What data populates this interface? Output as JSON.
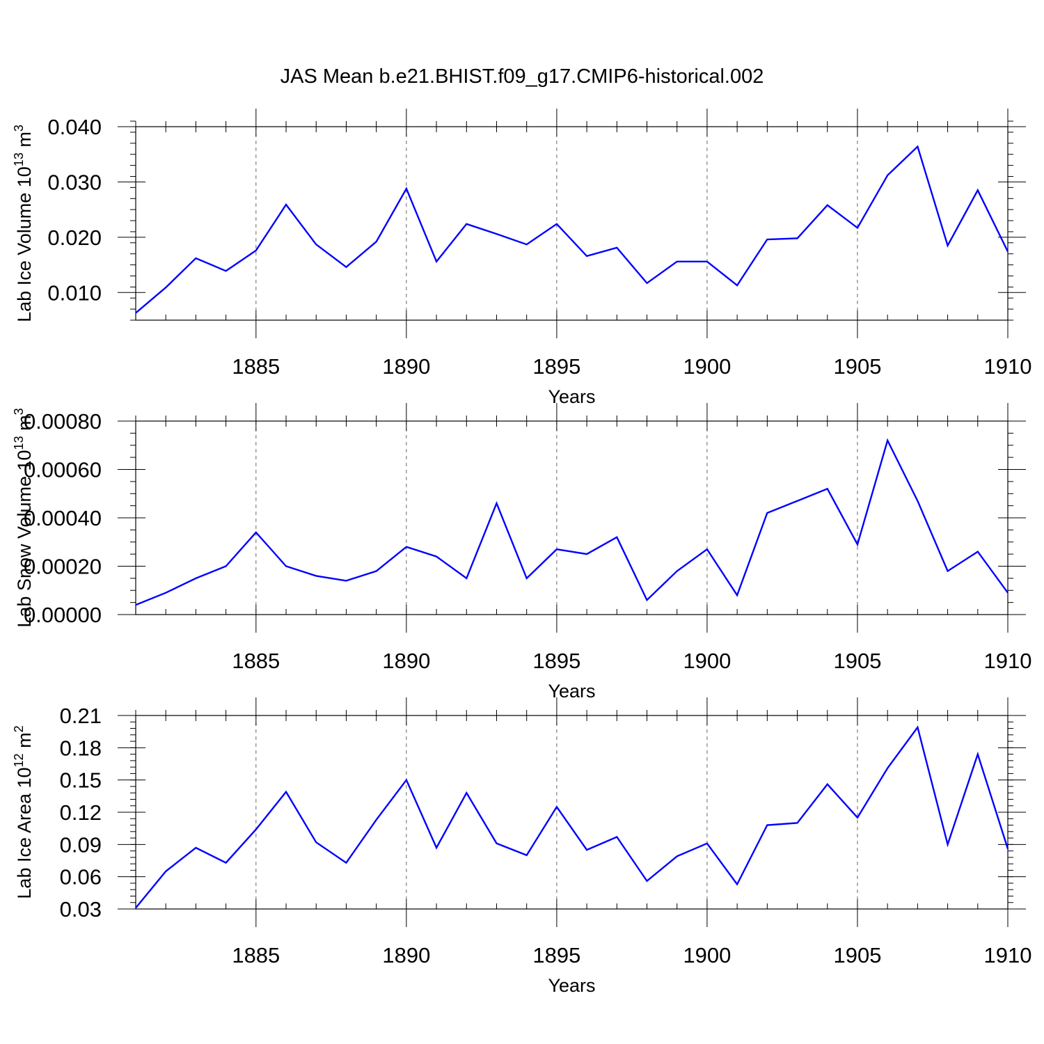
{
  "title": "JAS Mean b.e21.BHIST.f09_g17.CMIP6-historical.002",
  "series_color": "#0000ff",
  "chart_data": [
    {
      "type": "line",
      "xlabel": "Years",
      "ylabel": {
        "text": "Lab Ice Volume 10",
        "sup": "13",
        "unit": " m",
        "unit_sup": "3"
      },
      "xlim": [
        1881,
        1910
      ],
      "ylim": [
        0.005,
        0.04
      ],
      "xticks": [
        1885,
        1890,
        1895,
        1900,
        1905,
        1910
      ],
      "xtick_labels": [
        "1885",
        "1890",
        "1895",
        "1900",
        "1905",
        "1910"
      ],
      "yticks": [
        0.01,
        0.02,
        0.03,
        0.04
      ],
      "ytick_labels": [
        "0.010",
        "0.020",
        "0.030",
        "0.040"
      ],
      "y_minor_step": 0.002,
      "grid": "vertical dashed at major x ticks",
      "x": [
        1881,
        1882,
        1883,
        1884,
        1885,
        1886,
        1887,
        1888,
        1889,
        1890,
        1891,
        1892,
        1893,
        1894,
        1895,
        1896,
        1897,
        1898,
        1899,
        1900,
        1901,
        1902,
        1903,
        1904,
        1905,
        1906,
        1907,
        1908,
        1909,
        1910
      ],
      "values": [
        0.0063,
        0.0109,
        0.0162,
        0.0139,
        0.0176,
        0.0259,
        0.0187,
        0.0146,
        0.0192,
        0.0288,
        0.0156,
        0.0224,
        0.0206,
        0.0187,
        0.0224,
        0.0166,
        0.0181,
        0.0117,
        0.0156,
        0.0156,
        0.0113,
        0.0196,
        0.0198,
        0.0258,
        0.0217,
        0.0312,
        0.0364,
        0.0185,
        0.0285,
        0.0174
      ]
    },
    {
      "type": "line",
      "xlabel": "Years",
      "ylabel": {
        "text": "Lab Snow Volume 10",
        "sup": "13",
        "unit": " m",
        "unit_sup": "3"
      },
      "xlim": [
        1881,
        1910
      ],
      "ylim": [
        0.0,
        0.0008
      ],
      "xticks": [
        1885,
        1890,
        1895,
        1900,
        1905,
        1910
      ],
      "xtick_labels": [
        "1885",
        "1890",
        "1895",
        "1900",
        "1905",
        "1910"
      ],
      "yticks": [
        0.0,
        0.0002,
        0.0004,
        0.0006,
        0.0008
      ],
      "ytick_labels": [
        "0.00000",
        "0.00020",
        "0.00040",
        "0.00060",
        "0.00080"
      ],
      "y_minor_step": 5e-05,
      "grid": "vertical dashed at major x ticks",
      "x": [
        1881,
        1882,
        1883,
        1884,
        1885,
        1886,
        1887,
        1888,
        1889,
        1890,
        1891,
        1892,
        1893,
        1894,
        1895,
        1896,
        1897,
        1898,
        1899,
        1900,
        1901,
        1902,
        1903,
        1904,
        1905,
        1906,
        1907,
        1908,
        1909,
        1910
      ],
      "values": [
        4e-05,
        9e-05,
        0.00015,
        0.0002,
        0.00034,
        0.0002,
        0.00016,
        0.00014,
        0.00018,
        0.00028,
        0.00024,
        0.00015,
        0.00046,
        0.00015,
        0.00027,
        0.00025,
        0.00032,
        6e-05,
        0.00018,
        0.00027,
        8e-05,
        0.00042,
        0.00047,
        0.00052,
        0.00029,
        0.00072,
        0.00047,
        0.00018,
        0.00026,
        9e-05
      ]
    },
    {
      "type": "line",
      "xlabel": "Years",
      "ylabel": {
        "text": "Lab Ice Area 10",
        "sup": "12",
        "unit": " m",
        "unit_sup": "2"
      },
      "xlim": [
        1881,
        1910
      ],
      "ylim": [
        0.03,
        0.21
      ],
      "xticks": [
        1885,
        1890,
        1895,
        1900,
        1905,
        1910
      ],
      "xtick_labels": [
        "1885",
        "1890",
        "1895",
        "1900",
        "1905",
        "1910"
      ],
      "yticks": [
        0.03,
        0.06,
        0.09,
        0.12,
        0.15,
        0.18,
        0.21
      ],
      "ytick_labels": [
        "0.03",
        "0.06",
        "0.09",
        "0.12",
        "0.15",
        "0.18",
        "0.21"
      ],
      "y_minor_step": 0.006,
      "grid": "vertical dashed at major x ticks",
      "x": [
        1881,
        1882,
        1883,
        1884,
        1885,
        1886,
        1887,
        1888,
        1889,
        1890,
        1891,
        1892,
        1893,
        1894,
        1895,
        1896,
        1897,
        1898,
        1899,
        1900,
        1901,
        1902,
        1903,
        1904,
        1905,
        1906,
        1907,
        1908,
        1909,
        1910
      ],
      "values": [
        0.031,
        0.065,
        0.087,
        0.073,
        0.104,
        0.139,
        0.092,
        0.073,
        0.113,
        0.15,
        0.087,
        0.138,
        0.091,
        0.08,
        0.125,
        0.085,
        0.097,
        0.056,
        0.079,
        0.091,
        0.053,
        0.108,
        0.11,
        0.146,
        0.115,
        0.161,
        0.199,
        0.09,
        0.174,
        0.086
      ]
    }
  ]
}
